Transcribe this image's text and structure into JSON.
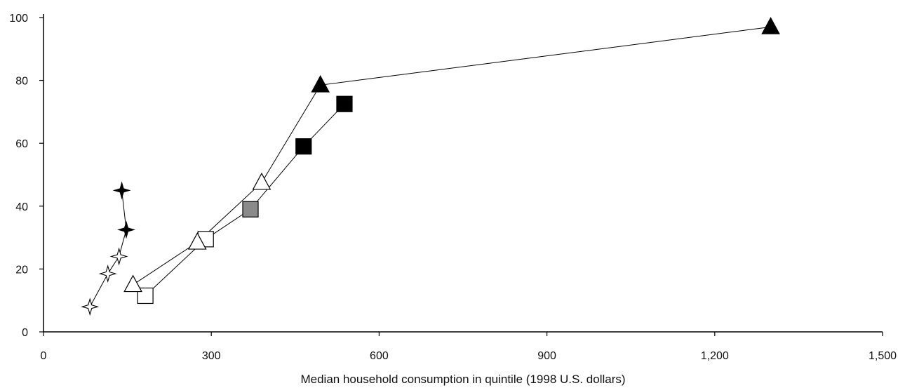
{
  "chart_data": {
    "type": "scatter",
    "title": "",
    "xlabel": "Median household consumption in quintile (1998 U.S. dollars)",
    "ylabel": "",
    "xlim": [
      0,
      1500
    ],
    "ylim": [
      0,
      100
    ],
    "x_ticks": [
      0,
      300,
      600,
      900,
      1200,
      1500
    ],
    "x_tick_labels": [
      "0",
      "300",
      "600",
      "900",
      "1,200",
      "1,500"
    ],
    "y_ticks": [
      0,
      20,
      40,
      60,
      80,
      100
    ],
    "y_tick_labels": [
      "0",
      "20",
      "40",
      "60",
      "80",
      "100"
    ],
    "grid": false,
    "legend": "none",
    "series": [
      {
        "marker": "star",
        "color": "#000000",
        "connected": true,
        "points": [
          {
            "x": 83,
            "y": 8,
            "fill": "open"
          },
          {
            "x": 115,
            "y": 18.5,
            "fill": "open"
          },
          {
            "x": 135,
            "y": 24,
            "fill": "open"
          },
          {
            "x": 148,
            "y": 32.5,
            "fill": "solid"
          },
          {
            "x": 140,
            "y": 45,
            "fill": "solid"
          }
        ]
      },
      {
        "marker": "square",
        "color": "#000000",
        "connected": true,
        "points": [
          {
            "x": 182,
            "y": 11.5,
            "fill": "open"
          },
          {
            "x": 290,
            "y": 29.5,
            "fill": "open"
          },
          {
            "x": 370,
            "y": 39,
            "fill": "gray"
          },
          {
            "x": 465,
            "y": 59,
            "fill": "solid"
          },
          {
            "x": 538,
            "y": 72.5,
            "fill": "solid"
          }
        ]
      },
      {
        "marker": "triangle",
        "color": "#000000",
        "connected": true,
        "points": [
          {
            "x": 160,
            "y": 15,
            "fill": "open"
          },
          {
            "x": 275,
            "y": 28.5,
            "fill": "open"
          },
          {
            "x": 390,
            "y": 47.5,
            "fill": "open"
          },
          {
            "x": 495,
            "y": 78.5,
            "fill": "solid"
          },
          {
            "x": 1300,
            "y": 97,
            "fill": "solid"
          }
        ]
      }
    ]
  }
}
